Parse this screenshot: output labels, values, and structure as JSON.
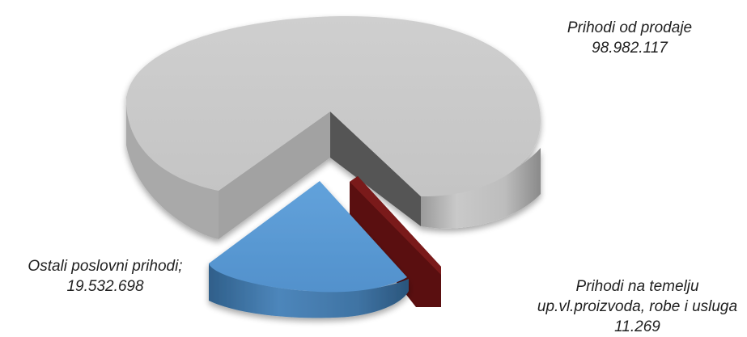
{
  "chart_data": {
    "type": "pie",
    "style": "3d-exploded",
    "slices": [
      {
        "label": "Prihodi od prodaje",
        "value": 98982117,
        "value_text": "98.982.117",
        "color": "#c8c8c8"
      },
      {
        "label": "Prihodi na temelju up.vl.proizvoda, robe i usluga",
        "value": 11269,
        "value_text": "11.269",
        "color": "#5b0f0f"
      },
      {
        "label": "Ostali poslovni prihodi",
        "value": 19532698,
        "value_text": "19.532.698",
        "color": "#5b9bd5"
      }
    ]
  },
  "labels": {
    "sales": {
      "line1": "Prihodi od prodaje",
      "line2": "98.982.117"
    },
    "other": {
      "line1": "Ostali poslovni prihodi;",
      "line2": "19.532.698"
    },
    "own": {
      "line1": "Prihodi na temelju",
      "line2": "up.vl.proizvoda, robe i usluga",
      "line3": "11.269"
    }
  }
}
